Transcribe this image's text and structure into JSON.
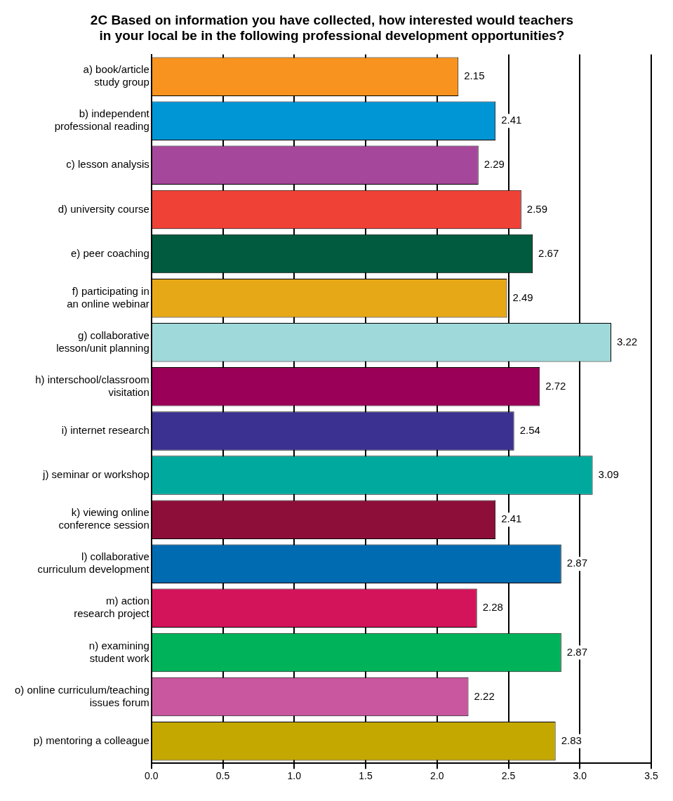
{
  "chart_data": {
    "type": "bar",
    "orientation": "horizontal",
    "title": "2C Based on information you have collected, how interested would teachers\nin your local be in the following professional development opportunities?",
    "categories": [
      "a) book/article\nstudy group",
      "b) independent\nprofessional reading",
      "c) lesson analysis",
      "d) university course",
      "e) peer coaching",
      "f) participating in\nan online webinar",
      "g) collaborative\nlesson/unit planning",
      "h) interschool/classroom\nvisitation",
      "i) internet research",
      "j) seminar or workshop",
      "k) viewing online\nconference session",
      "l) collaborative\ncurriculum development",
      "m) action\nresearch project",
      "n) examining\nstudent work",
      "o) online curriculum/teaching\nissues forum",
      "p) mentoring a colleague"
    ],
    "values": [
      2.15,
      2.41,
      2.29,
      2.59,
      2.67,
      2.49,
      3.22,
      2.72,
      2.54,
      3.09,
      2.41,
      2.87,
      2.28,
      2.87,
      2.22,
      2.83
    ],
    "colors": [
      "#f7931e",
      "#0096d6",
      "#a5479b",
      "#ef4136",
      "#005b3f",
      "#e6a817",
      "#9fd9d9",
      "#9b0058",
      "#3a3190",
      "#00a99d",
      "#8e0e3a",
      "#006bb0",
      "#d4145a",
      "#00b25a",
      "#c9579f",
      "#c4a800"
    ],
    "xlim": [
      0,
      3.5
    ],
    "xticks": [
      {
        "value": 0,
        "label": "0.0"
      },
      {
        "value": 0.5,
        "label": "0.5"
      },
      {
        "value": 1,
        "label": "1.0"
      },
      {
        "value": 1.5,
        "label": "1.5"
      },
      {
        "value": 2,
        "label": "2.0"
      },
      {
        "value": 2.5,
        "label": "2.5"
      },
      {
        "value": 3,
        "label": "3.0"
      },
      {
        "value": 3.5,
        "label": "3.5"
      }
    ],
    "grid": "x",
    "data_labels": true,
    "legend": false
  }
}
